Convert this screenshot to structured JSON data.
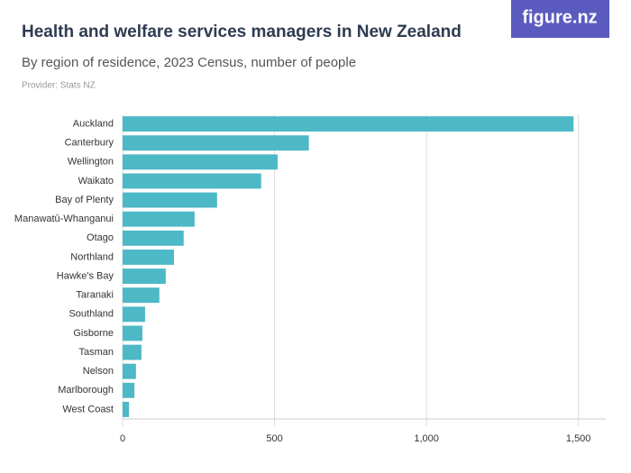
{
  "brand": "figure.nz",
  "chart_data": {
    "type": "hbar",
    "title": "Health and welfare services managers in New Zealand",
    "subtitle": "By region of residence, 2023 Census, number of people",
    "provider": "Provider: Stats NZ",
    "categories": [
      "Auckland",
      "Canterbury",
      "Wellington",
      "Waikato",
      "Bay of Plenty",
      "Manawatū-Whanganui",
      "Otago",
      "Northland",
      "Hawke's Bay",
      "Taranaki",
      "Southland",
      "Gisborne",
      "Tasman",
      "Nelson",
      "Marlborough",
      "West Coast"
    ],
    "values": [
      1484,
      613,
      510,
      456,
      311,
      237,
      201,
      169,
      142,
      121,
      74,
      65,
      62,
      44,
      39,
      21
    ],
    "color": "#4db8c6",
    "xlim": [
      0,
      1590
    ],
    "xticks": [
      0,
      500,
      {
        "value": 1000,
        "label": "1,000"
      },
      {
        "value": 1500,
        "label": "1,500"
      }
    ],
    "grid": true
  }
}
